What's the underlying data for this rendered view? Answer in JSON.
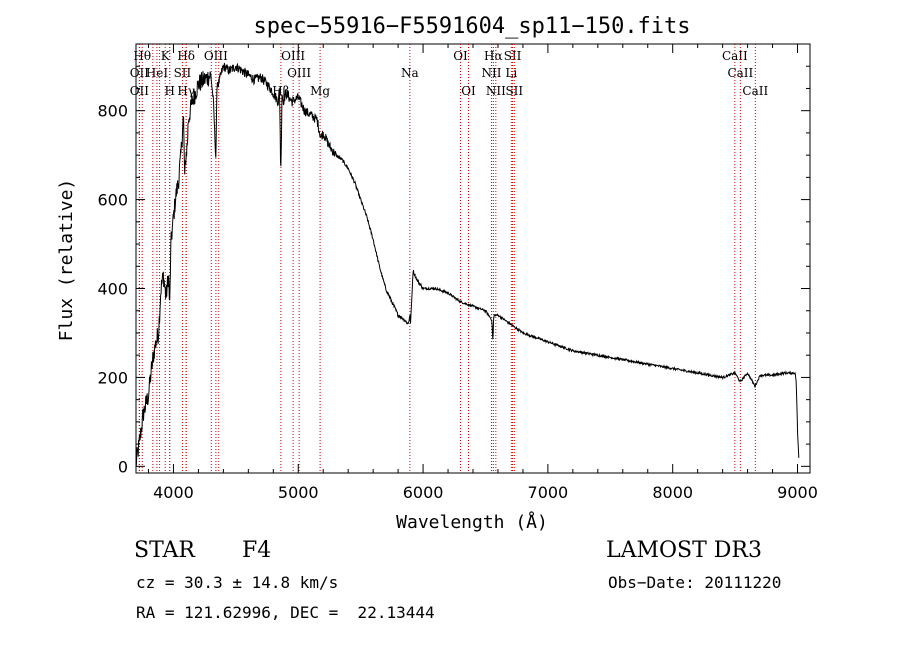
{
  "chart_data": {
    "type": "line",
    "title": "spec−55916−F5591604_sp11−150.fits",
    "xlabel": "Wavelength (Å)",
    "ylabel": "Flux (relative)",
    "xlim": [
      3700,
      9100
    ],
    "ylim": [
      -15,
      950
    ],
    "xticks": [
      4000,
      5000,
      6000,
      7000,
      8000,
      9000
    ],
    "yticks": [
      0,
      200,
      400,
      600,
      800
    ],
    "grid": false,
    "series": [
      {
        "name": "flux",
        "x": [
          3700,
          3720,
          3740,
          3760,
          3780,
          3800,
          3820,
          3840,
          3860,
          3880,
          3900,
          3920,
          3940,
          3960,
          3970,
          3980,
          4000,
          4020,
          4040,
          4060,
          4080,
          4090,
          4100,
          4110,
          4120,
          4150,
          4200,
          4250,
          4300,
          4320,
          4340,
          4350,
          4360,
          4400,
          4450,
          4500,
          4550,
          4600,
          4650,
          4700,
          4750,
          4800,
          4840,
          4850,
          4860,
          4870,
          4880,
          4900,
          4950,
          5000,
          5050,
          5100,
          5150,
          5180,
          5200,
          5250,
          5300,
          5350,
          5400,
          5450,
          5500,
          5550,
          5600,
          5650,
          5700,
          5750,
          5800,
          5850,
          5880,
          5895,
          5900,
          5920,
          5950,
          6000,
          6100,
          6200,
          6300,
          6400,
          6500,
          6550,
          6560,
          6565,
          6570,
          6600,
          6700,
          6800,
          6900,
          7000,
          7200,
          7400,
          7600,
          7800,
          8000,
          8200,
          8400,
          8500,
          8540,
          8600,
          8660,
          8700,
          8800,
          8900,
          8980,
          8990,
          9000,
          9010
        ],
        "y": [
          5,
          40,
          80,
          120,
          140,
          160,
          210,
          250,
          280,
          300,
          400,
          430,
          380,
          430,
          360,
          500,
          560,
          610,
          640,
          700,
          790,
          650,
          700,
          720,
          780,
          820,
          860,
          870,
          880,
          820,
          690,
          870,
          860,
          900,
          890,
          900,
          890,
          880,
          870,
          875,
          860,
          840,
          820,
          850,
          650,
          840,
          820,
          840,
          820,
          830,
          800,
          790,
          780,
          740,
          750,
          720,
          700,
          690,
          670,
          640,
          600,
          560,
          510,
          450,
          400,
          370,
          340,
          330,
          320,
          340,
          320,
          440,
          420,
          400,
          400,
          390,
          370,
          360,
          350,
          330,
          280,
          330,
          340,
          340,
          320,
          300,
          290,
          280,
          260,
          250,
          240,
          230,
          220,
          210,
          200,
          210,
          190,
          210,
          180,
          205,
          205,
          210,
          210,
          190,
          80,
          20
        ],
        "annotations_text": [
          "Hθ Ol Hel SII",
          "Hδ OII",
          "OIII Mg",
          "Na",
          "OI",
          "Hα SII NII",
          "CaII"
        ]
      }
    ],
    "lines": [
      {
        "w": 3750,
        "label": "Hθ",
        "row": 0
      },
      {
        "w": 3727,
        "label": "OII",
        "row": 1
      },
      {
        "w": 3727,
        "label": "OII",
        "row": 2
      },
      {
        "w": 3835,
        "label": "",
        "row": -1
      },
      {
        "w": 3868,
        "label": "HeI",
        "row": 1
      },
      {
        "w": 3889,
        "label": "",
        "row": -1
      },
      {
        "w": 3934,
        "label": "K",
        "row": 0
      },
      {
        "w": 3970,
        "label": "H",
        "row": 2
      },
      {
        "w": 3970,
        "label": "",
        "row": -1
      },
      {
        "w": 4072,
        "label": "SII",
        "row": 1
      },
      {
        "w": 4102,
        "label": "Hδ",
        "row": 0
      },
      {
        "w": 4102,
        "label": "Hγ",
        "row": 2
      },
      {
        "w": 4303,
        "label": "",
        "row": -1
      },
      {
        "w": 4340,
        "label": "OIII",
        "row": 0
      },
      {
        "w": 4363,
        "label": "",
        "row": -1
      },
      {
        "w": 4861,
        "label": "Hβ",
        "row": 2
      },
      {
        "w": 4959,
        "label": "OIII",
        "row": 0
      },
      {
        "w": 5007,
        "label": "OIII",
        "row": 1
      },
      {
        "w": 5175,
        "label": "Mg",
        "row": 2
      },
      {
        "w": 5894,
        "label": "Na",
        "row": 1
      },
      {
        "w": 6300,
        "label": "OI",
        "row": 0
      },
      {
        "w": 6364,
        "label": "OI",
        "row": 2
      },
      {
        "w": 6548,
        "label": "NII",
        "row": 1
      },
      {
        "w": 6563,
        "label": "Hα",
        "row": 0
      },
      {
        "w": 6583,
        "label": "NII",
        "row": 2
      },
      {
        "w": 6707,
        "label": "Li",
        "row": 1
      },
      {
        "w": 6717,
        "label": "SII",
        "row": 0
      },
      {
        "w": 6731,
        "label": "SII",
        "row": 2
      },
      {
        "w": 8498,
        "label": "CaII",
        "row": 0
      },
      {
        "w": 8542,
        "label": "CaII",
        "row": 1
      },
      {
        "w": 8662,
        "label": "CaII",
        "row": 2
      }
    ]
  },
  "info": {
    "class_label": "STAR",
    "subclass": "F4",
    "survey": "LAMOST DR3",
    "cz": "cz = 30.3 ± 14.8 km/s",
    "obs_date": "Obs−Date: 20111220",
    "radec": "RA = 121.62996, DEC =  22.13444"
  }
}
